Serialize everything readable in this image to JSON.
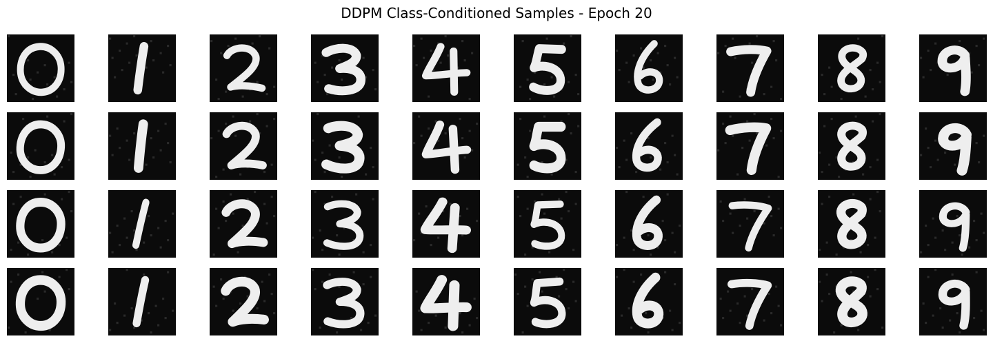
{
  "figure": {
    "title": "DDPM Class-Conditioned Samples - Epoch 20"
  },
  "grid": {
    "rows": 4,
    "classes": [
      "0",
      "1",
      "2",
      "3",
      "4",
      "5",
      "6",
      "7",
      "8",
      "9"
    ]
  },
  "colors": {
    "tile_background": "#0b0b0b",
    "digit_stroke": "#eeeeee"
  },
  "samples": [
    [
      "0",
      "1",
      "2",
      "3",
      "4",
      "5",
      "6",
      "7",
      "8",
      "9"
    ],
    [
      "0",
      "1",
      "2",
      "3",
      "4",
      "5",
      "6",
      "7",
      "8",
      "9"
    ],
    [
      "0",
      "1",
      "2",
      "3",
      "4",
      "5",
      "6",
      "7",
      "8",
      "9"
    ],
    [
      "0",
      "1",
      "2",
      "3",
      "4",
      "5",
      "6",
      "7",
      "8",
      "9"
    ]
  ]
}
